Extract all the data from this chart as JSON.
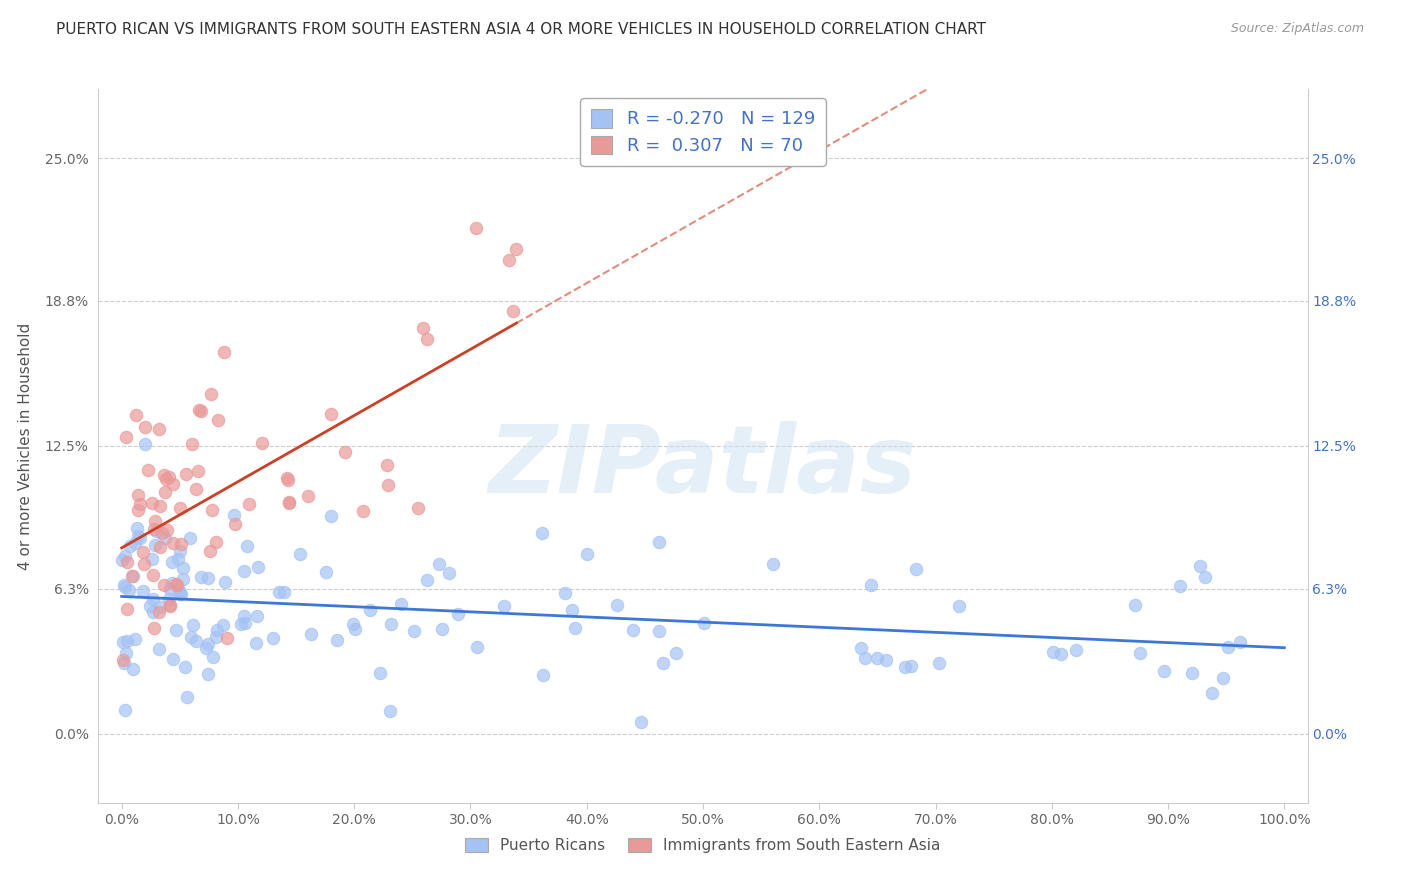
{
  "title": "PUERTO RICAN VS IMMIGRANTS FROM SOUTH EASTERN ASIA 4 OR MORE VEHICLES IN HOUSEHOLD CORRELATION CHART",
  "source": "Source: ZipAtlas.com",
  "ylabel": "4 or more Vehicles in Household",
  "ytick_values": [
    0.0,
    6.3,
    12.5,
    18.8,
    25.0
  ],
  "xtick_values": [
    0.0,
    10.0,
    20.0,
    30.0,
    40.0,
    50.0,
    60.0,
    70.0,
    80.0,
    90.0,
    100.0
  ],
  "xlim": [
    -2,
    102
  ],
  "ylim": [
    -3,
    28
  ],
  "blue_color": "#a4c2f4",
  "pink_color": "#ea9999",
  "blue_line_color": "#3c78d8",
  "pink_line_color": "#cc4125",
  "legend_blue_R": "-0.270",
  "legend_blue_N": "129",
  "legend_pink_R": "0.307",
  "legend_pink_N": "70",
  "watermark_text": "ZIPatlas",
  "blue_seed": 12,
  "pink_seed": 7
}
